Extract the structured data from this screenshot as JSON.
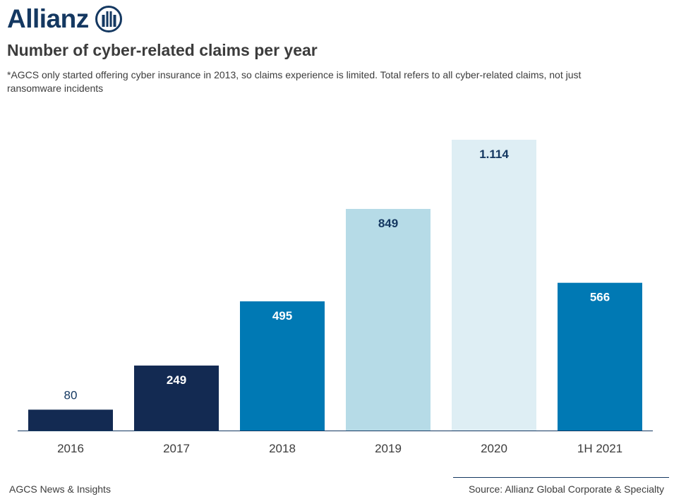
{
  "brand": {
    "name": "Allianz",
    "color": "#143861"
  },
  "title": "Number of cyber-related claims per year",
  "subtitle": "*AGCS only started offering cyber insurance in 2013, so claims experience is limited. Total refers to all cyber-related claims, not just ransomware incidents",
  "footer": {
    "left": "AGCS News & Insights",
    "right": "Source: Allianz Global Corporate & Specialty"
  },
  "chart_data": {
    "type": "bar",
    "categories": [
      "2016",
      "2017",
      "2018",
      "2019",
      "2020",
      "1H 2021"
    ],
    "values": [
      80,
      249,
      495,
      849,
      1114,
      566
    ],
    "value_labels": [
      "80",
      "249",
      "495",
      "849",
      "1.114",
      "566"
    ],
    "bar_colors": [
      "#132a52",
      "#132a52",
      "#0079b4",
      "#b6dbe7",
      "#deeef4",
      "#0079b4"
    ],
    "label_colors": [
      "#143861",
      "#ffffff",
      "#ffffff",
      "#143861",
      "#143861",
      "#ffffff"
    ],
    "label_position": [
      "above",
      "inside",
      "inside",
      "inside",
      "inside",
      "inside"
    ],
    "ylim": [
      0,
      1114
    ],
    "grid": false,
    "legend": "none"
  }
}
